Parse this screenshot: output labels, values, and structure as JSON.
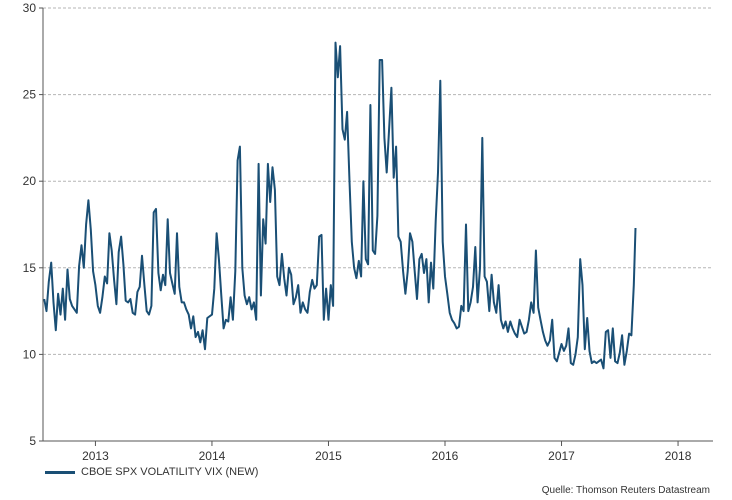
{
  "chart_data": {
    "type": "line",
    "title": "",
    "xlabel": "",
    "ylabel": "",
    "ylim": [
      5,
      30
    ],
    "yticks": [
      5,
      10,
      15,
      20,
      25,
      30
    ],
    "xlim": [
      2012.55,
      2018.3
    ],
    "xticks": [
      2013,
      2014,
      2015,
      2016,
      2017,
      2018
    ],
    "xtick_labels": [
      "2013",
      "2014",
      "2015",
      "2016",
      "2017",
      "2018"
    ],
    "grid": "horizontal dashed",
    "legend": "bottom-left",
    "series": [
      {
        "name": "CBOE SPX VOLATILITY VIX (NEW)",
        "color": "#1a4f75",
        "points": [
          [
            2012.56,
            13.2
          ],
          [
            2012.58,
            12.5
          ],
          [
            2012.6,
            14.2
          ],
          [
            2012.62,
            15.3
          ],
          [
            2012.64,
            13.0
          ],
          [
            2012.66,
            11.4
          ],
          [
            2012.68,
            13.5
          ],
          [
            2012.7,
            12.3
          ],
          [
            2012.72,
            13.8
          ],
          [
            2012.74,
            12.0
          ],
          [
            2012.76,
            14.9
          ],
          [
            2012.78,
            13.2
          ],
          [
            2012.8,
            12.8
          ],
          [
            2012.82,
            12.6
          ],
          [
            2012.84,
            12.4
          ],
          [
            2012.86,
            15.1
          ],
          [
            2012.88,
            16.3
          ],
          [
            2012.9,
            15.0
          ],
          [
            2012.92,
            17.5
          ],
          [
            2012.94,
            18.9
          ],
          [
            2012.96,
            17.2
          ],
          [
            2012.98,
            14.8
          ],
          [
            2013.0,
            14.0
          ],
          [
            2013.02,
            12.8
          ],
          [
            2013.04,
            12.4
          ],
          [
            2013.06,
            13.3
          ],
          [
            2013.08,
            14.5
          ],
          [
            2013.1,
            14.1
          ],
          [
            2013.12,
            17.0
          ],
          [
            2013.14,
            16.0
          ],
          [
            2013.16,
            14.3
          ],
          [
            2013.18,
            12.9
          ],
          [
            2013.2,
            15.9
          ],
          [
            2013.22,
            16.8
          ],
          [
            2013.24,
            15.2
          ],
          [
            2013.26,
            13.1
          ],
          [
            2013.28,
            13.0
          ],
          [
            2013.3,
            13.2
          ],
          [
            2013.32,
            12.4
          ],
          [
            2013.34,
            12.3
          ],
          [
            2013.36,
            13.6
          ],
          [
            2013.38,
            13.9
          ],
          [
            2013.4,
            15.7
          ],
          [
            2013.42,
            14.0
          ],
          [
            2013.44,
            12.5
          ],
          [
            2013.46,
            12.3
          ],
          [
            2013.48,
            12.8
          ],
          [
            2013.5,
            18.2
          ],
          [
            2013.52,
            18.4
          ],
          [
            2013.54,
            14.7
          ],
          [
            2013.56,
            13.7
          ],
          [
            2013.58,
            14.6
          ],
          [
            2013.6,
            14.0
          ],
          [
            2013.62,
            17.8
          ],
          [
            2013.64,
            14.7
          ],
          [
            2013.66,
            14.1
          ],
          [
            2013.68,
            13.5
          ],
          [
            2013.7,
            17.0
          ],
          [
            2013.72,
            13.9
          ],
          [
            2013.74,
            13.0
          ],
          [
            2013.76,
            13.0
          ],
          [
            2013.78,
            12.6
          ],
          [
            2013.8,
            12.3
          ],
          [
            2013.82,
            11.5
          ],
          [
            2013.84,
            12.2
          ],
          [
            2013.86,
            11.0
          ],
          [
            2013.88,
            11.3
          ],
          [
            2013.9,
            10.7
          ],
          [
            2013.92,
            11.4
          ],
          [
            2013.94,
            10.3
          ],
          [
            2013.96,
            12.1
          ],
          [
            2014.0,
            12.3
          ],
          [
            2014.02,
            13.8
          ],
          [
            2014.04,
            17.0
          ],
          [
            2014.06,
            15.5
          ],
          [
            2014.08,
            13.4
          ],
          [
            2014.1,
            11.5
          ],
          [
            2014.12,
            12.0
          ],
          [
            2014.14,
            11.9
          ],
          [
            2014.16,
            13.3
          ],
          [
            2014.18,
            12.0
          ],
          [
            2014.2,
            14.8
          ],
          [
            2014.22,
            21.2
          ],
          [
            2014.24,
            22.0
          ],
          [
            2014.26,
            15.0
          ],
          [
            2014.28,
            13.4
          ],
          [
            2014.3,
            12.9
          ],
          [
            2014.32,
            13.3
          ],
          [
            2014.34,
            12.6
          ],
          [
            2014.36,
            13.0
          ],
          [
            2014.38,
            12.0
          ],
          [
            2014.4,
            21.0
          ],
          [
            2014.42,
            13.4
          ],
          [
            2014.44,
            17.8
          ],
          [
            2014.46,
            16.4
          ],
          [
            2014.48,
            21.0
          ],
          [
            2014.5,
            18.8
          ],
          [
            2014.52,
            20.8
          ],
          [
            2014.54,
            19.5
          ],
          [
            2014.56,
            14.5
          ],
          [
            2014.58,
            14.0
          ],
          [
            2014.6,
            15.8
          ],
          [
            2014.62,
            14.4
          ],
          [
            2014.64,
            13.4
          ],
          [
            2014.66,
            15.0
          ],
          [
            2014.68,
            14.6
          ],
          [
            2014.7,
            12.9
          ],
          [
            2014.72,
            13.3
          ],
          [
            2014.74,
            14.0
          ],
          [
            2014.76,
            12.4
          ],
          [
            2014.78,
            13.0
          ],
          [
            2014.8,
            12.6
          ],
          [
            2014.82,
            12.4
          ],
          [
            2014.84,
            13.6
          ],
          [
            2014.86,
            14.3
          ],
          [
            2014.88,
            13.8
          ],
          [
            2014.9,
            14.0
          ],
          [
            2014.92,
            16.8
          ],
          [
            2014.94,
            16.9
          ],
          [
            2014.96,
            12.0
          ],
          [
            2014.98,
            13.8
          ],
          [
            2015.0,
            12.0
          ],
          [
            2015.02,
            14.0
          ],
          [
            2015.04,
            12.8
          ],
          [
            2015.06,
            28.0
          ],
          [
            2015.08,
            26.0
          ],
          [
            2015.1,
            27.8
          ],
          [
            2015.12,
            23.0
          ],
          [
            2015.14,
            22.4
          ],
          [
            2015.16,
            24.0
          ],
          [
            2015.18,
            20.0
          ],
          [
            2015.2,
            16.5
          ],
          [
            2015.22,
            15.0
          ],
          [
            2015.24,
            14.4
          ],
          [
            2015.26,
            15.4
          ],
          [
            2015.28,
            14.5
          ],
          [
            2015.3,
            20.0
          ],
          [
            2015.32,
            15.5
          ],
          [
            2015.34,
            15.2
          ],
          [
            2015.36,
            24.4
          ],
          [
            2015.38,
            16.0
          ],
          [
            2015.4,
            15.8
          ],
          [
            2015.42,
            18.0
          ],
          [
            2015.44,
            27.0
          ],
          [
            2015.46,
            27.0
          ],
          [
            2015.48,
            22.5
          ],
          [
            2015.5,
            20.5
          ],
          [
            2015.52,
            23.0
          ],
          [
            2015.54,
            25.4
          ],
          [
            2015.56,
            20.2
          ],
          [
            2015.58,
            22.0
          ],
          [
            2015.6,
            16.8
          ],
          [
            2015.62,
            16.5
          ],
          [
            2015.64,
            14.8
          ],
          [
            2015.66,
            13.5
          ],
          [
            2015.68,
            14.8
          ],
          [
            2015.7,
            17.0
          ],
          [
            2015.72,
            16.5
          ],
          [
            2015.74,
            14.8
          ],
          [
            2015.76,
            13.2
          ],
          [
            2015.78,
            15.5
          ],
          [
            2015.8,
            15.8
          ],
          [
            2015.82,
            14.7
          ],
          [
            2015.84,
            15.5
          ],
          [
            2015.86,
            13.0
          ],
          [
            2015.88,
            15.3
          ],
          [
            2015.9,
            13.8
          ],
          [
            2015.92,
            17.7
          ],
          [
            2015.94,
            20.5
          ],
          [
            2015.96,
            25.8
          ],
          [
            2015.98,
            16.5
          ],
          [
            2016.0,
            14.5
          ],
          [
            2016.02,
            13.5
          ],
          [
            2016.04,
            12.4
          ],
          [
            2016.06,
            12.0
          ],
          [
            2016.08,
            11.8
          ],
          [
            2016.1,
            11.5
          ],
          [
            2016.12,
            11.6
          ],
          [
            2016.14,
            12.8
          ],
          [
            2016.16,
            12.5
          ],
          [
            2016.18,
            17.5
          ],
          [
            2016.2,
            12.5
          ],
          [
            2016.22,
            13.0
          ],
          [
            2016.24,
            13.9
          ],
          [
            2016.26,
            16.2
          ],
          [
            2016.28,
            13.0
          ],
          [
            2016.3,
            15.0
          ],
          [
            2016.32,
            22.5
          ],
          [
            2016.34,
            14.5
          ],
          [
            2016.36,
            14.2
          ],
          [
            2016.38,
            12.5
          ],
          [
            2016.4,
            14.6
          ],
          [
            2016.42,
            13.0
          ],
          [
            2016.44,
            12.4
          ],
          [
            2016.46,
            14.0
          ],
          [
            2016.48,
            12.0
          ],
          [
            2016.5,
            11.5
          ],
          [
            2016.52,
            11.9
          ],
          [
            2016.54,
            11.3
          ],
          [
            2016.56,
            11.9
          ],
          [
            2016.58,
            11.5
          ],
          [
            2016.6,
            11.2
          ],
          [
            2016.62,
            11.0
          ],
          [
            2016.64,
            12.0
          ],
          [
            2016.66,
            11.6
          ],
          [
            2016.68,
            11.2
          ],
          [
            2016.7,
            11.3
          ],
          [
            2016.72,
            12.0
          ],
          [
            2016.74,
            13.0
          ],
          [
            2016.76,
            12.4
          ],
          [
            2016.78,
            16.0
          ],
          [
            2016.8,
            12.7
          ],
          [
            2016.82,
            12.0
          ],
          [
            2016.84,
            11.3
          ],
          [
            2016.86,
            10.8
          ],
          [
            2016.88,
            10.5
          ],
          [
            2016.9,
            10.8
          ],
          [
            2016.92,
            12.0
          ],
          [
            2016.94,
            9.8
          ],
          [
            2016.96,
            9.6
          ],
          [
            2017.0,
            10.6
          ],
          [
            2017.02,
            10.2
          ],
          [
            2017.04,
            10.5
          ],
          [
            2017.06,
            11.5
          ],
          [
            2017.08,
            9.5
          ],
          [
            2017.1,
            9.4
          ],
          [
            2017.12,
            10.0
          ],
          [
            2017.14,
            11.0
          ],
          [
            2017.16,
            15.5
          ],
          [
            2017.18,
            14.0
          ],
          [
            2017.2,
            10.3
          ],
          [
            2017.22,
            12.1
          ],
          [
            2017.24,
            10.2
          ],
          [
            2017.26,
            9.5
          ],
          [
            2017.28,
            9.6
          ],
          [
            2017.3,
            9.5
          ],
          [
            2017.32,
            9.6
          ],
          [
            2017.34,
            9.7
          ],
          [
            2017.36,
            9.2
          ],
          [
            2017.38,
            11.3
          ],
          [
            2017.4,
            11.4
          ],
          [
            2017.42,
            9.8
          ],
          [
            2017.44,
            11.5
          ],
          [
            2017.46,
            9.6
          ],
          [
            2017.48,
            9.5
          ],
          [
            2017.5,
            10.1
          ],
          [
            2017.52,
            11.1
          ],
          [
            2017.54,
            9.4
          ],
          [
            2017.56,
            10.2
          ],
          [
            2017.58,
            11.2
          ],
          [
            2017.6,
            11.1
          ],
          [
            2017.62,
            14.0
          ],
          [
            2017.635,
            17.3
          ]
        ]
      }
    ]
  },
  "legend": {
    "label": "CBOE SPX VOLATILITY VIX (NEW)",
    "color": "#1a4f75"
  },
  "source_text": "Quelle: Thomson Reuters Datastream"
}
